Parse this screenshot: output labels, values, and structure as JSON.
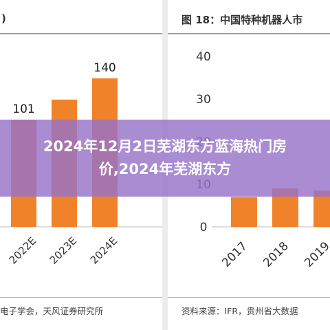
{
  "overlay": {
    "title": "2024年12月2日芜湖东方蓝海热门房价,2024年芜湖东方"
  },
  "colors": {
    "bar": "#f0822a",
    "axis": "#bdbdbd",
    "text": "#333333",
    "overlay": "#9673c8"
  },
  "chart_data": [
    {
      "type": "bar",
      "title": ")",
      "categories": [
        "2022E",
        "2023E",
        "2024E"
      ],
      "values": [
        101,
        120,
        140
      ],
      "data_labels": [
        "101",
        "",
        "140"
      ],
      "source": "电子学会，天风证券研究所",
      "grid": false,
      "legend": "none"
    },
    {
      "type": "bar",
      "title": "图 18：中国特种机器人市",
      "categories": [
        "2017",
        "2018",
        "2019"
      ],
      "values": [
        7,
        9,
        8.5
      ],
      "ylim": [
        0,
        40
      ],
      "yticks": [
        "0",
        "10",
        "20",
        "30",
        "40"
      ],
      "source": "资料来源：IFR，贵州省大数据",
      "grid": false,
      "legend": "none"
    }
  ]
}
